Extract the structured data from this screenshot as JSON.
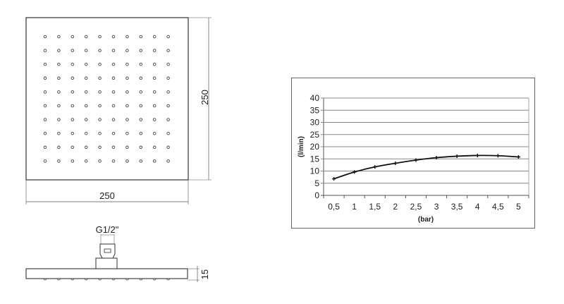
{
  "drawing": {
    "top_view": {
      "width_label": "250",
      "height_label": "250",
      "nozzle_rows": 10,
      "nozzle_cols": 10
    },
    "side_view": {
      "thread_label": "G1/2\"",
      "thickness_label": "15"
    }
  },
  "chart_data": {
    "type": "line",
    "title": "",
    "xlabel": "(bar)",
    "ylabel": "(l/min)",
    "categories": [
      "0,5",
      "1",
      "1,5",
      "2",
      "2,5",
      "3",
      "3,5",
      "4",
      "4,5",
      "5"
    ],
    "x": [
      0.5,
      1,
      1.5,
      2,
      2.5,
      3,
      3.5,
      4,
      4.5,
      5
    ],
    "values": [
      6.8,
      9.6,
      11.7,
      13.2,
      14.5,
      15.5,
      16.1,
      16.4,
      16.3,
      15.8
    ],
    "ylim": [
      0,
      40
    ],
    "yticks": [
      "0",
      "5",
      "10",
      "15",
      "20",
      "25",
      "30",
      "35",
      "40"
    ],
    "grid": "horizontal",
    "line_color": "#111111"
  }
}
